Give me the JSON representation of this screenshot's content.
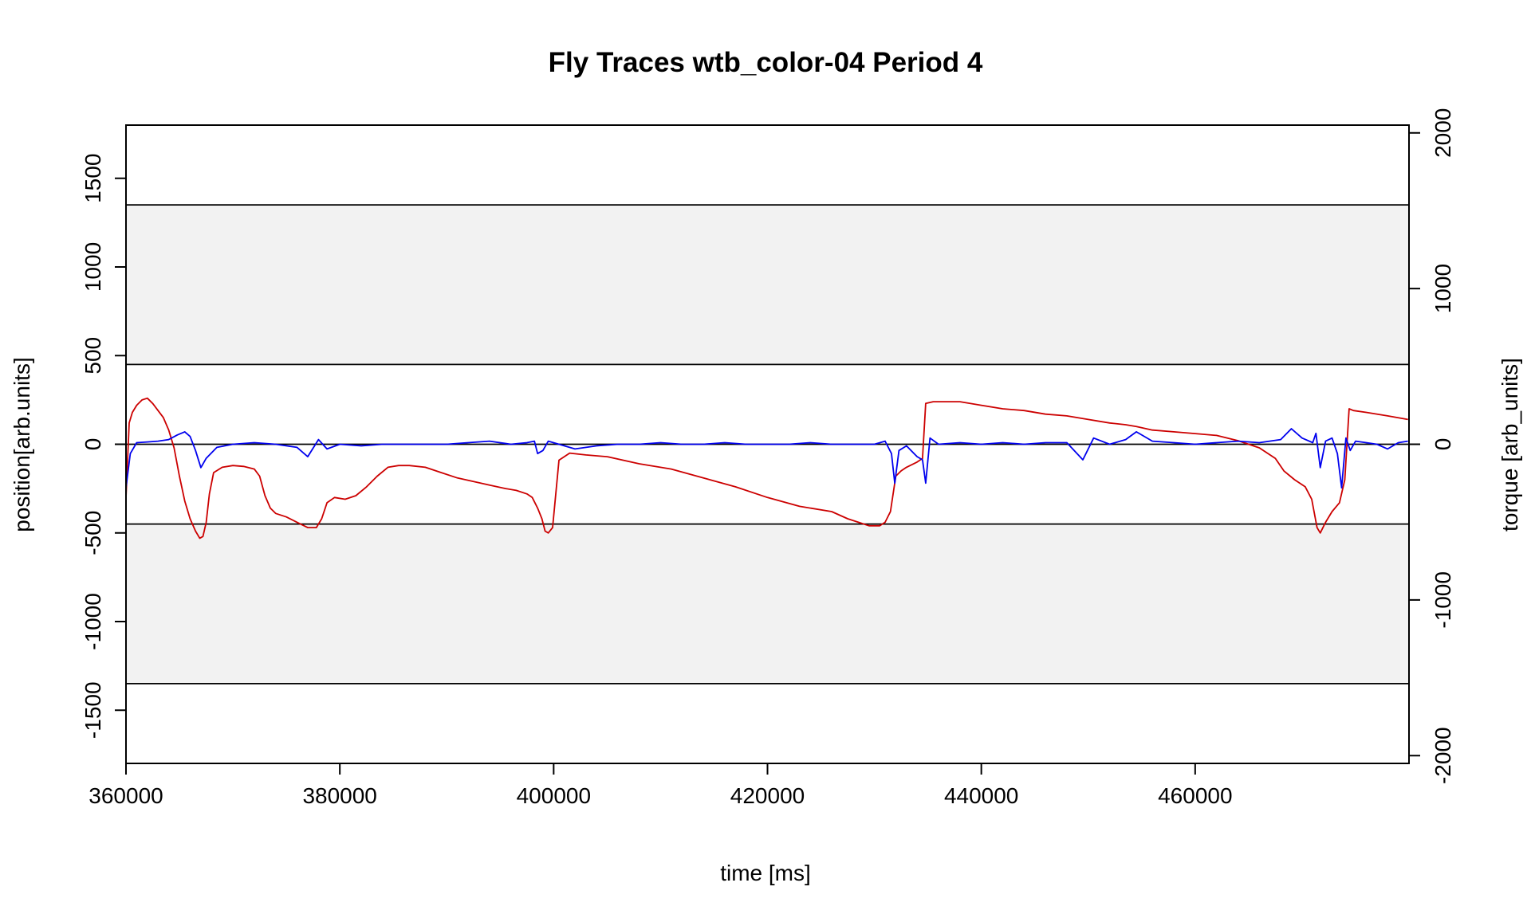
{
  "chart_data": {
    "type": "line",
    "title": "Fly Traces wtb_color-04 Period 4",
    "xlabel": "time [ms]",
    "ylabel_left": "position[arb.units]",
    "ylabel_right": "torque [arb_units]",
    "xlim": [
      360000,
      480000
    ],
    "ylim_left": [
      -1800,
      1800
    ],
    "ylim_right": [
      -2050,
      2050
    ],
    "x_ticks": [
      360000,
      380000,
      400000,
      420000,
      440000,
      460000
    ],
    "x_tick_labels": [
      "360000",
      "380000",
      "400000",
      "420000",
      "440000",
      "460000"
    ],
    "y_left_ticks": [
      -1500,
      -1000,
      -500,
      0,
      500,
      1000,
      1500
    ],
    "y_left_tick_labels": [
      "-1500",
      "-1000",
      "-500",
      "0",
      "500",
      "1000",
      "1500"
    ],
    "y_right_ticks": [
      -2000,
      -1000,
      0,
      1000,
      2000
    ],
    "y_right_tick_labels": [
      "-2000",
      "-1000",
      "0",
      "1000",
      "2000"
    ],
    "grid": false,
    "bands": [
      {
        "y_from": 450,
        "y_to": 1350,
        "color": "#f2f2f2"
      },
      {
        "y_from": -1350,
        "y_to": -450,
        "color": "#f2f2f2"
      }
    ],
    "hlines": [
      1350,
      450,
      0,
      -450,
      -1350
    ],
    "series": [
      {
        "color": "#cc0000",
        "axis": "left",
        "x": [
          360000,
          360300,
          360600,
          361000,
          361500,
          362000,
          362500,
          363000,
          363500,
          364000,
          364500,
          365000,
          365500,
          366000,
          366500,
          366900,
          367200,
          367500,
          367800,
          368200,
          369000,
          370000,
          371000,
          372000,
          372500,
          373000,
          373500,
          374000,
          375000,
          376000,
          377000,
          377800,
          378300,
          378800,
          379500,
          380500,
          381500,
          382500,
          383500,
          384500,
          385500,
          386500,
          388000,
          389500,
          391000,
          392500,
          394000,
          395500,
          396500,
          397500,
          398000,
          398500,
          398900,
          399200,
          399500,
          399900,
          400500,
          401500,
          403000,
          405000,
          408000,
          411000,
          414000,
          417000,
          420000,
          423000,
          426000,
          427500,
          428500,
          429500,
          430500,
          431000,
          431500,
          432000,
          432500,
          433000,
          434000,
          434500,
          434800,
          435500,
          436500,
          438000,
          440000,
          442000,
          444000,
          446000,
          448000,
          450000,
          452000,
          453500,
          454500,
          456000,
          458000,
          460000,
          462000,
          464000,
          466000,
          467500,
          468300,
          469300,
          470300,
          470900,
          471400,
          471700,
          472200,
          472800,
          473500,
          474000,
          474400,
          474800,
          476000,
          478000,
          479900
        ],
        "y": [
          -300,
          120,
          180,
          220,
          250,
          260,
          230,
          190,
          150,
          80,
          -20,
          -180,
          -320,
          -420,
          -490,
          -530,
          -520,
          -440,
          -280,
          -160,
          -130,
          -120,
          -125,
          -140,
          -180,
          -290,
          -360,
          -390,
          -410,
          -440,
          -470,
          -470,
          -420,
          -330,
          -300,
          -310,
          -290,
          -240,
          -180,
          -130,
          -120,
          -120,
          -130,
          -160,
          -190,
          -210,
          -230,
          -250,
          -260,
          -280,
          -300,
          -360,
          -420,
          -490,
          -500,
          -470,
          -90,
          -50,
          -60,
          -70,
          -110,
          -140,
          -190,
          -240,
          -300,
          -350,
          -380,
          -420,
          -440,
          -460,
          -460,
          -440,
          -380,
          -180,
          -150,
          -130,
          -100,
          -80,
          230,
          240,
          240,
          240,
          220,
          200,
          190,
          170,
          160,
          140,
          120,
          110,
          100,
          80,
          70,
          60,
          50,
          20,
          -20,
          -80,
          -150,
          -200,
          -240,
          -310,
          -470,
          -500,
          -440,
          -380,
          -330,
          -200,
          200,
          190,
          180,
          160,
          140
        ]
      },
      {
        "color": "#0000ee",
        "axis": "right",
        "x": [
          360000,
          360400,
          361000,
          362000,
          363000,
          364000,
          364800,
          365500,
          366000,
          366500,
          367000,
          367500,
          368500,
          370000,
          372000,
          374000,
          376000,
          377000,
          378000,
          378800,
          380000,
          382000,
          384000,
          386000,
          388000,
          390000,
          392000,
          394000,
          396000,
          397500,
          398200,
          398500,
          399000,
          399500,
          400500,
          402000,
          404000,
          406000,
          408000,
          410000,
          412000,
          414000,
          416000,
          418000,
          420000,
          422000,
          424000,
          426000,
          428000,
          430000,
          431000,
          431600,
          431900,
          432300,
          433000,
          434000,
          434500,
          434800,
          435200,
          436000,
          438000,
          440000,
          442000,
          444000,
          446000,
          448000,
          449500,
          450500,
          452000,
          453500,
          454500,
          456000,
          458000,
          460000,
          462000,
          464000,
          466000,
          468000,
          469000,
          470000,
          471000,
          471300,
          471700,
          472200,
          472800,
          473300,
          473700,
          474100,
          474500,
          475000,
          476000,
          477000,
          478000,
          479000,
          479900
        ],
        "y": [
          -280,
          -60,
          10,
          15,
          20,
          30,
          60,
          80,
          50,
          -40,
          -150,
          -90,
          -20,
          0,
          10,
          0,
          -20,
          -80,
          30,
          -30,
          0,
          -10,
          0,
          0,
          0,
          0,
          10,
          20,
          0,
          10,
          20,
          -60,
          -40,
          20,
          0,
          -30,
          -10,
          0,
          0,
          10,
          0,
          0,
          10,
          0,
          0,
          0,
          10,
          0,
          0,
          0,
          20,
          -60,
          -250,
          -40,
          -10,
          -80,
          -100,
          -250,
          40,
          0,
          10,
          0,
          10,
          0,
          10,
          10,
          -100,
          40,
          0,
          30,
          80,
          20,
          10,
          0,
          10,
          20,
          10,
          30,
          100,
          40,
          10,
          70,
          -150,
          20,
          40,
          -60,
          -280,
          40,
          -40,
          20,
          10,
          0,
          -30,
          10,
          20
        ]
      }
    ]
  }
}
